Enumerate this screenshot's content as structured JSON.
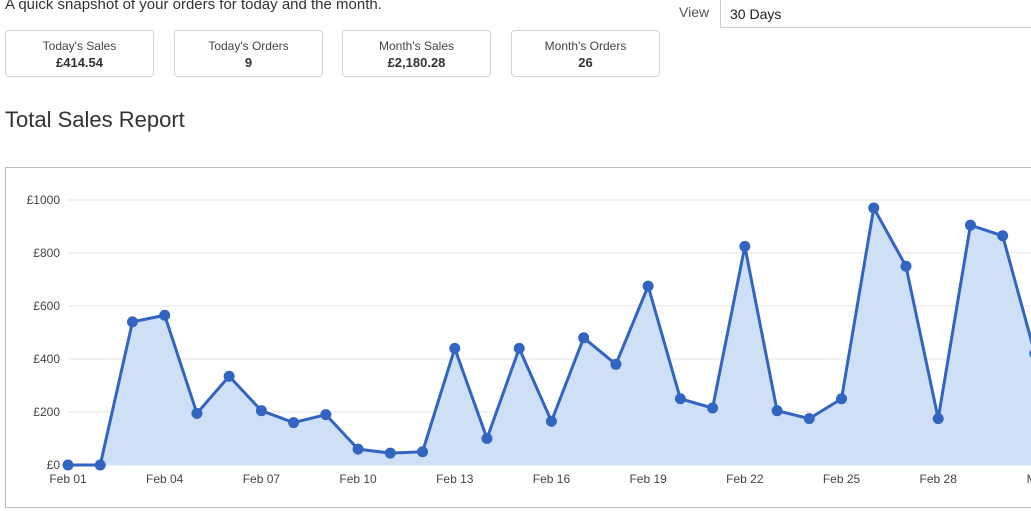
{
  "header": {
    "intro": "A quick snapshot of your orders for today and the month.",
    "view_label": "View",
    "view_value": "30 Days"
  },
  "stats": [
    {
      "label": "Today's Sales",
      "value": "£414.54"
    },
    {
      "label": "Today's Orders",
      "value": "9"
    },
    {
      "label": "Month's Sales",
      "value": "£2,180.28"
    },
    {
      "label": "Month's Orders",
      "value": "26"
    }
  ],
  "report": {
    "title": "Total Sales Report"
  },
  "colors": {
    "line": "#3264c2",
    "fill": "#cfe0f6",
    "point": "#3264c2"
  },
  "chart_data": {
    "type": "area",
    "y_ticks": [
      "£0",
      "£200",
      "£400",
      "£600",
      "£800",
      "£1000"
    ],
    "ylim": [
      0,
      1000
    ],
    "x_ticks": [
      {
        "day": 1,
        "label": "Feb 01"
      },
      {
        "day": 4,
        "label": "Feb 04"
      },
      {
        "day": 7,
        "label": "Feb 07"
      },
      {
        "day": 10,
        "label": "Feb 10"
      },
      {
        "day": 13,
        "label": "Feb 13"
      },
      {
        "day": 16,
        "label": "Feb 16"
      },
      {
        "day": 19,
        "label": "Feb 19"
      },
      {
        "day": 22,
        "label": "Feb 22"
      },
      {
        "day": 25,
        "label": "Feb 25"
      },
      {
        "day": 28,
        "label": "Feb 28"
      },
      {
        "day": 31,
        "label": "Ma"
      }
    ],
    "x": [
      1,
      2,
      3,
      4,
      5,
      6,
      7,
      8,
      9,
      10,
      11,
      12,
      13,
      14,
      15,
      16,
      17,
      18,
      19,
      20,
      21,
      22,
      23,
      24,
      25,
      26,
      27,
      28,
      29,
      30,
      31
    ],
    "values": [
      0,
      0,
      540,
      565,
      195,
      335,
      205,
      160,
      190,
      60,
      45,
      50,
      440,
      100,
      440,
      165,
      480,
      380,
      675,
      250,
      215,
      825,
      205,
      175,
      250,
      970,
      750,
      175,
      905,
      865,
      420
    ],
    "grid": true
  }
}
